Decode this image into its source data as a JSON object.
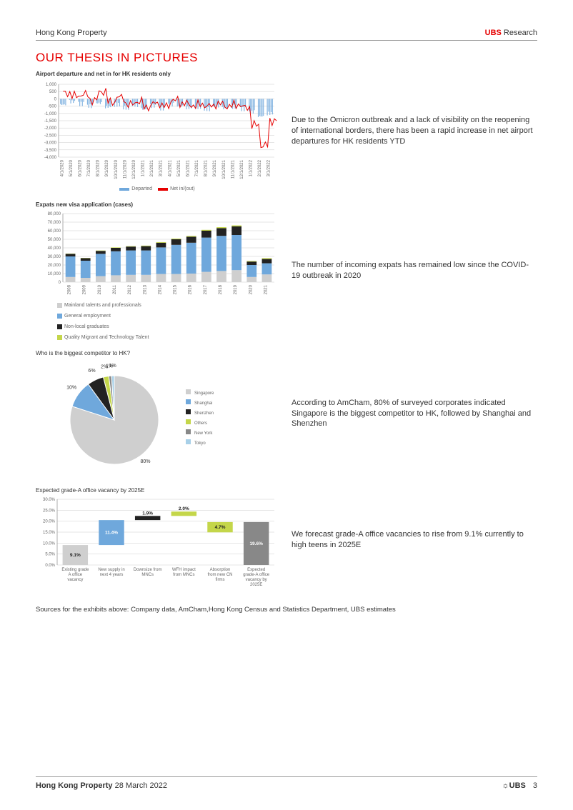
{
  "header": {
    "left": "Hong Kong Property",
    "brand": "UBS",
    "rest": " Research"
  },
  "page_title": "OUR THESIS IN PICTURES",
  "chart1": {
    "title": "Airport departure and net in for HK residents only",
    "y_ticks": [
      1000,
      500,
      0,
      -500,
      -1000,
      -1500,
      -2000,
      -2500,
      -3000,
      -3500,
      -4000
    ],
    "x_labels": [
      "4/1/2020",
      "5/1/2020",
      "6/1/2020",
      "7/1/2020",
      "8/1/2020",
      "9/1/2020",
      "10/1/2020",
      "11/1/2020",
      "12/1/2020",
      "1/1/2021",
      "2/1/2021",
      "3/1/2021",
      "4/1/2021",
      "5/1/2021",
      "6/1/2021",
      "7/1/2021",
      "8/1/2021",
      "9/1/2021",
      "10/1/2021",
      "11/1/2021",
      "12/1/2021",
      "1/1/2022",
      "2/1/2022",
      "3/1/2022"
    ],
    "series": {
      "departed": {
        "label": "Departed",
        "color": "#6fa8dc"
      },
      "net": {
        "label": "Net in/(out)",
        "color": "#e60000"
      }
    },
    "departed_vals": [
      -400,
      -200,
      -350,
      -500,
      -300,
      -550,
      -400,
      -600,
      -450,
      -700,
      -500,
      -650,
      -400,
      -500,
      -600,
      -550,
      -700,
      -500,
      -650,
      -550,
      -700,
      -900,
      -1200,
      -1000
    ],
    "net_vals": [
      400,
      200,
      300,
      -100,
      500,
      -200,
      100,
      -400,
      -200,
      -550,
      -300,
      -500,
      -100,
      -300,
      -450,
      -400,
      -500,
      -350,
      -500,
      -400,
      -600,
      -1800,
      -3200,
      -1500
    ]
  },
  "desc1": "Due to the Omicron outbreak and a lack of visibility on the reopening of international borders, there has been a rapid increase in net airport departures for HK residents YTD",
  "chart2": {
    "title": "Expats new visa application (cases)",
    "y_ticks": [
      0,
      10000,
      20000,
      30000,
      40000,
      50000,
      60000,
      70000,
      80000
    ],
    "y_labels": [
      "0",
      "10,000",
      "20,000",
      "30,000",
      "40,000",
      "50,000",
      "60,000",
      "70,000",
      "80,000"
    ],
    "x_labels": [
      "2008",
      "2009",
      "2010",
      "2011",
      "2012",
      "2013",
      "2014",
      "2015",
      "2016",
      "2017",
      "2018",
      "2019",
      "2020",
      "2021"
    ],
    "colors": {
      "mainland": "#cfcfcf",
      "general": "#6fa8dc",
      "nonlocal": "#222222",
      "quality": "#c4d64a"
    },
    "stacks": [
      {
        "mainland": 6000,
        "general": 24000,
        "nonlocal": 3000,
        "quality": 300
      },
      {
        "mainland": 5000,
        "general": 20000,
        "nonlocal": 3000,
        "quality": 300
      },
      {
        "mainland": 7000,
        "general": 26000,
        "nonlocal": 3500,
        "quality": 400
      },
      {
        "mainland": 8000,
        "general": 28000,
        "nonlocal": 4000,
        "quality": 500
      },
      {
        "mainland": 8500,
        "general": 28500,
        "nonlocal": 4500,
        "quality": 500
      },
      {
        "mainland": 8500,
        "general": 28500,
        "nonlocal": 5000,
        "quality": 600
      },
      {
        "mainland": 9500,
        "general": 31000,
        "nonlocal": 5500,
        "quality": 700
      },
      {
        "mainland": 9500,
        "general": 34000,
        "nonlocal": 6500,
        "quality": 800
      },
      {
        "mainland": 10000,
        "general": 36000,
        "nonlocal": 7000,
        "quality": 900
      },
      {
        "mainland": 12000,
        "general": 40000,
        "nonlocal": 8000,
        "quality": 1000
      },
      {
        "mainland": 13000,
        "general": 41000,
        "nonlocal": 9000,
        "quality": 1100
      },
      {
        "mainland": 14000,
        "general": 41000,
        "nonlocal": 10000,
        "quality": 1200
      },
      {
        "mainland": 6000,
        "general": 14000,
        "nonlocal": 4000,
        "quality": 700
      },
      {
        "mainland": 9000,
        "general": 13000,
        "nonlocal": 5000,
        "quality": 1000
      }
    ],
    "legend": [
      {
        "label": "Mainland talents and professionals",
        "color": "#cfcfcf"
      },
      {
        "label": "General employment",
        "color": "#6fa8dc"
      },
      {
        "label": "Non-local graduates",
        "color": "#222222"
      },
      {
        "label": "Quality Migrant and Technology Talent",
        "color": "#c4d64a"
      }
    ]
  },
  "desc2": "The number of incoming expats has remained low since the COVID-19 outbreak in 2020",
  "chart3": {
    "title": "Who is the biggest competitor to HK?",
    "slices": [
      {
        "label": "Singapore",
        "pct": 80,
        "color": "#cfcfcf"
      },
      {
        "label": "Shanghai",
        "pct": 10,
        "color": "#6fa8dc"
      },
      {
        "label": "Shenzhen",
        "pct": 6,
        "color": "#222222"
      },
      {
        "label": "Others",
        "pct": 2,
        "color": "#c4d64a"
      },
      {
        "label": "New York",
        "pct": 1,
        "color": "#888888"
      },
      {
        "label": "Tokyo",
        "pct": 1,
        "color": "#a8d0e8"
      }
    ]
  },
  "desc3": "According to AmCham, 80% of surveyed corporates indicated Singapore is the biggest competitor to HK, followed by Shanghai and Shenzhen",
  "chart4": {
    "title": "Expected grade-A office vacancy by 2025E",
    "y_ticks": [
      "0.0%",
      "5.0%",
      "10.0%",
      "15.0%",
      "20.0%",
      "25.0%",
      "30.0%"
    ],
    "bars": [
      {
        "label": "Existing grade A office vacancy",
        "value": 9.1,
        "display": "9.1%",
        "color": "#cfcfcf",
        "offset": 0
      },
      {
        "label": "New supply in next 4 years",
        "value": 11.4,
        "display": "11.4%",
        "color": "#6fa8dc",
        "offset": 9.1
      },
      {
        "label": "Downsize from MNCs",
        "value": 1.9,
        "display": "1.9%",
        "color": "#222222",
        "offset": 20.5
      },
      {
        "label": "WFH impact from MNCs",
        "value": 2.0,
        "display": "2.0%",
        "color": "#c4d64a",
        "offset": 22.4
      },
      {
        "label": "Absorption from new CN firms",
        "value": -4.7,
        "display": "4.7%",
        "color": "#c4d64a",
        "offset": 19.6
      },
      {
        "label": "Expected grade-A office vacancy by 2025E",
        "value": 19.6,
        "display": "19.6%",
        "color": "#888888",
        "offset": 0
      }
    ]
  },
  "desc4": "We forecast grade-A office vacancies to rise from 9.1% currently to high teens in 2025E",
  "sources": "Sources for the exhibits above: Company data, AmCham,Hong Kong Census and Statistics Department, UBS estimates",
  "footer": {
    "title": "Hong Kong Property",
    "date": " 28 March 2022",
    "logo": "UBS",
    "page": "3"
  }
}
